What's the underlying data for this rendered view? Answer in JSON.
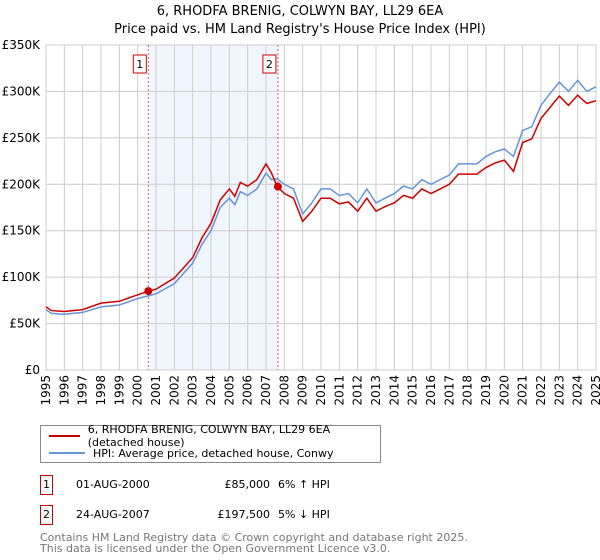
{
  "title": "6, RHODFA BRENIG, COLWYN BAY, LL29 6EA",
  "subtitle": "Price paid vs. HM Land Registry's House Price Index (HPI)",
  "chart_data": {
    "type": "line",
    "ylim": [
      0,
      350000
    ],
    "xlim": [
      1995,
      2025
    ],
    "yticks": [
      "£0",
      "£50K",
      "£100K",
      "£150K",
      "£200K",
      "£250K",
      "£300K",
      "£350K"
    ],
    "ytick_values": [
      0,
      50000,
      100000,
      150000,
      200000,
      250000,
      300000,
      350000
    ],
    "xticks": [
      "1995",
      "1996",
      "1997",
      "1998",
      "1999",
      "2000",
      "2001",
      "2002",
      "2003",
      "2004",
      "2005",
      "2006",
      "2007",
      "2008",
      "2009",
      "2010",
      "2011",
      "2012",
      "2013",
      "2014",
      "2015",
      "2016",
      "2017",
      "2018",
      "2019",
      "2020",
      "2021",
      "2022",
      "2023",
      "2024",
      "2025"
    ],
    "grid": true,
    "x": [
      1995,
      1995.3,
      1996,
      1997,
      1998,
      1999,
      2000,
      2000.6,
      2001,
      2002,
      2003,
      2003.5,
      2004,
      2004.5,
      2005,
      2005.3,
      2005.6,
      2006,
      2006.5,
      2007,
      2007.3,
      2007.6,
      2008,
      2008.5,
      2009,
      2009.5,
      2010,
      2010.5,
      2011,
      2011.5,
      2012,
      2012.5,
      2013,
      2013.5,
      2014,
      2014.5,
      2015,
      2015.5,
      2016,
      2016.5,
      2017,
      2017.5,
      2018,
      2018.5,
      2019,
      2019.5,
      2020,
      2020.5,
      2021,
      2021.5,
      2022,
      2022.5,
      2023,
      2023.5,
      2024,
      2024.5,
      2025
    ],
    "series": [
      {
        "name": "6, RHODFA BRENIG, COLWYN BAY, LL29 6EA (detached house)",
        "color": "#cc0000",
        "values": [
          68,
          64,
          63,
          65,
          72,
          74,
          81,
          85,
          87,
          99,
          121,
          142,
          158,
          183,
          195,
          187,
          202,
          198,
          205,
          222,
          212,
          198,
          190,
          185,
          160,
          171,
          185,
          185,
          179,
          181,
          171,
          185,
          171,
          176,
          180,
          188,
          185,
          195,
          190,
          195,
          200,
          211,
          211,
          211,
          218,
          223,
          226,
          214,
          245,
          249,
          271,
          283,
          295,
          285,
          296,
          287,
          290
        ]
      },
      {
        "name": "HPI: Average price, detached house, Conwy",
        "color": "#6495d5",
        "values": [
          65,
          61,
          60,
          62,
          68,
          70,
          77,
          80,
          82,
          93,
          115,
          135,
          150,
          175,
          185,
          178,
          192,
          188,
          195,
          212,
          205,
          206,
          200,
          195,
          168,
          180,
          195,
          195,
          188,
          190,
          180,
          195,
          180,
          185,
          190,
          198,
          195,
          205,
          200,
          205,
          210,
          222,
          222,
          222,
          230,
          235,
          238,
          230,
          258,
          262,
          285,
          298,
          310,
          300,
          312,
          300,
          305
        ]
      }
    ],
    "value_unit": "thousand GBP",
    "sales": [
      {
        "label": "1",
        "x": 2000.58,
        "value": 85000
      },
      {
        "label": "2",
        "x": 2007.65,
        "value": 197500
      }
    ]
  },
  "legend": {
    "red": "6, RHODFA BRENIG, COLWYN BAY, LL29 6EA (detached house)",
    "blue": "HPI: Average price, detached house, Conwy"
  },
  "transactions": [
    {
      "num": "1",
      "date": "01-AUG-2000",
      "price": "£85,000",
      "hpi": "6% ↑ HPI"
    },
    {
      "num": "2",
      "date": "24-AUG-2007",
      "price": "£197,500",
      "hpi": "5% ↓ HPI"
    }
  ],
  "footer": [
    "Contains HM Land Registry data © Crown copyright and database right 2025.",
    "This data is licensed under the Open Government Licence v3.0."
  ]
}
